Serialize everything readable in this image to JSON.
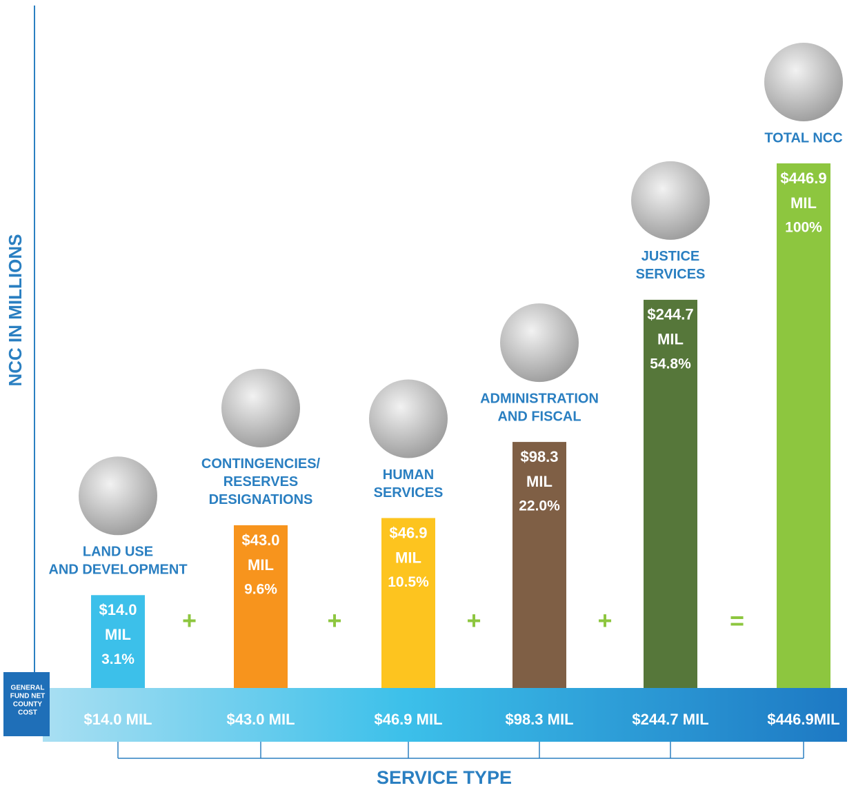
{
  "chart_data": {
    "type": "bar",
    "y_label": "NCC IN MILLIONS",
    "x_label": "SERVICE TYPE",
    "row_label": [
      "GENERAL",
      "FUND NET",
      "COUNTY",
      "COST"
    ],
    "categories": [
      [
        "LAND USE",
        "AND DEVELOPMENT"
      ],
      [
        "CONTINGENCIES/",
        "RESERVES",
        "DESIGNATIONS"
      ],
      [
        "HUMAN",
        "SERVICES"
      ],
      [
        "ADMINISTRATION",
        "AND FISCAL"
      ],
      [
        "JUSTICE",
        "SERVICES"
      ],
      [
        "TOTAL NCC"
      ]
    ],
    "values": [
      14.0,
      43.0,
      46.9,
      98.3,
      244.7,
      446.9
    ],
    "value_labels": [
      "$14.0 MIL",
      "$43.0 MIL",
      "$46.9 MIL",
      "$98.3 MIL",
      "$244.7 MIL",
      "$446.9MIL"
    ],
    "bar_labels": [
      [
        "$14.0",
        "MIL"
      ],
      [
        "$43.0",
        "MIL"
      ],
      [
        "$46.9",
        "MIL"
      ],
      [
        "$98.3",
        "MIL"
      ],
      [
        "$244.7",
        "MIL"
      ],
      [
        "$446.9",
        "MIL"
      ]
    ],
    "shares": [
      3.1,
      9.6,
      10.5,
      22.0,
      54.8,
      100
    ],
    "share_labels": [
      "3.1%",
      "9.6%",
      "10.5%",
      "22.0%",
      "54.8%",
      "100%"
    ],
    "operators": [
      "+",
      "+",
      "+",
      "+",
      "="
    ],
    "colors": [
      "#3cc0ea",
      "#f7941d",
      "#fdc41f",
      "#7f5f45",
      "#56773a",
      "#8dc63f"
    ]
  }
}
